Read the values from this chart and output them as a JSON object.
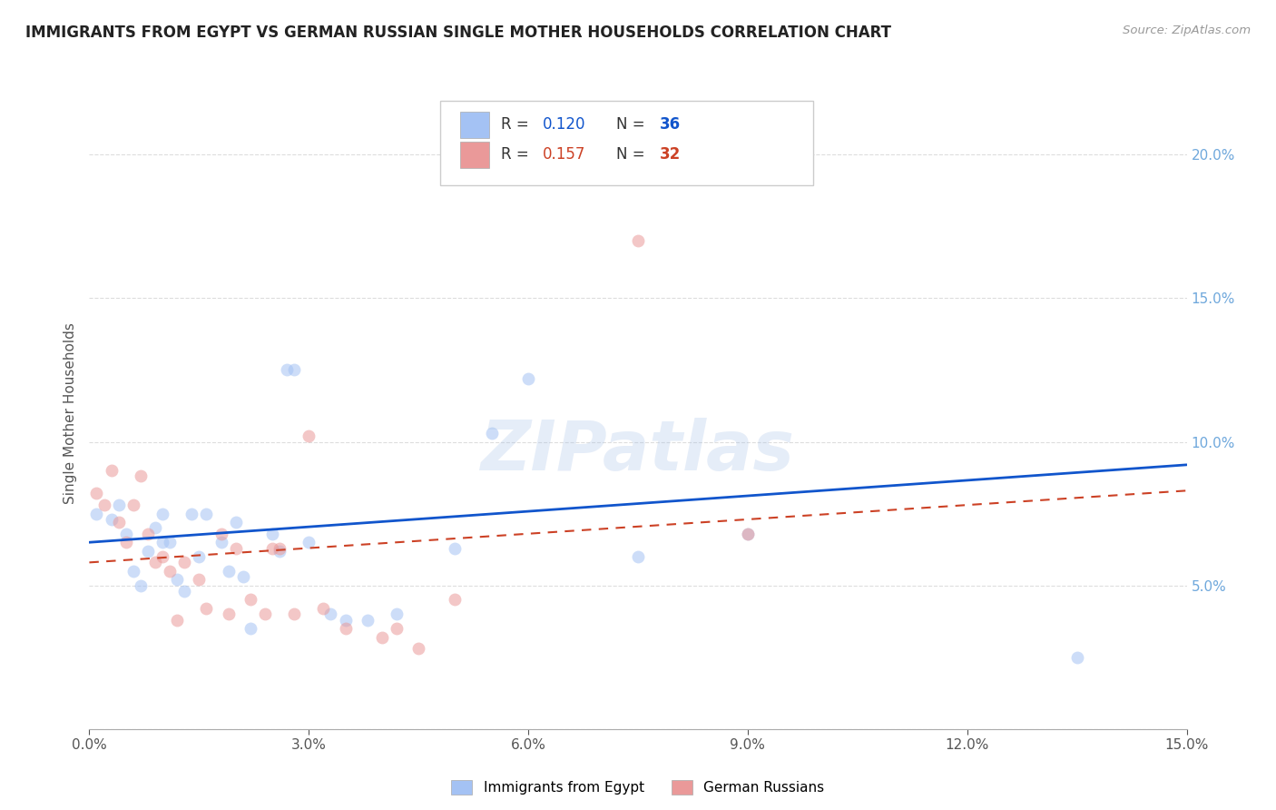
{
  "title": "IMMIGRANTS FROM EGYPT VS GERMAN RUSSIAN SINGLE MOTHER HOUSEHOLDS CORRELATION CHART",
  "source": "Source: ZipAtlas.com",
  "ylabel": "Single Mother Households",
  "xlim": [
    0.0,
    0.15
  ],
  "ylim": [
    0.0,
    0.22
  ],
  "xticks": [
    0.0,
    0.03,
    0.06,
    0.09,
    0.12,
    0.15
  ],
  "yticks_right": [
    0.05,
    0.1,
    0.15,
    0.2
  ],
  "R1": "0.120",
  "N1": "36",
  "R2": "0.157",
  "N2": "32",
  "blue_color": "#a4c2f4",
  "pink_color": "#ea9999",
  "blue_line_color": "#1155cc",
  "pink_line_color": "#cc4125",
  "right_axis_color": "#6fa8dc",
  "watermark": "ZIPatlas",
  "blue_scatter_x": [
    0.001,
    0.003,
    0.004,
    0.005,
    0.006,
    0.007,
    0.008,
    0.009,
    0.01,
    0.01,
    0.011,
    0.012,
    0.013,
    0.014,
    0.015,
    0.016,
    0.018,
    0.019,
    0.02,
    0.021,
    0.022,
    0.025,
    0.026,
    0.027,
    0.028,
    0.03,
    0.033,
    0.035,
    0.038,
    0.042,
    0.05,
    0.055,
    0.06,
    0.075,
    0.09,
    0.135
  ],
  "blue_scatter_y": [
    0.075,
    0.073,
    0.078,
    0.068,
    0.055,
    0.05,
    0.062,
    0.07,
    0.065,
    0.075,
    0.065,
    0.052,
    0.048,
    0.075,
    0.06,
    0.075,
    0.065,
    0.055,
    0.072,
    0.053,
    0.035,
    0.068,
    0.062,
    0.125,
    0.125,
    0.065,
    0.04,
    0.038,
    0.038,
    0.04,
    0.063,
    0.103,
    0.122,
    0.06,
    0.068,
    0.025
  ],
  "pink_scatter_x": [
    0.001,
    0.002,
    0.003,
    0.004,
    0.005,
    0.006,
    0.007,
    0.008,
    0.009,
    0.01,
    0.011,
    0.012,
    0.013,
    0.015,
    0.016,
    0.018,
    0.019,
    0.02,
    0.022,
    0.024,
    0.025,
    0.026,
    0.028,
    0.03,
    0.032,
    0.035,
    0.04,
    0.042,
    0.045,
    0.05,
    0.075,
    0.09
  ],
  "pink_scatter_y": [
    0.082,
    0.078,
    0.09,
    0.072,
    0.065,
    0.078,
    0.088,
    0.068,
    0.058,
    0.06,
    0.055,
    0.038,
    0.058,
    0.052,
    0.042,
    0.068,
    0.04,
    0.063,
    0.045,
    0.04,
    0.063,
    0.063,
    0.04,
    0.102,
    0.042,
    0.035,
    0.032,
    0.035,
    0.028,
    0.045,
    0.17,
    0.068
  ],
  "blue_line_x": [
    0.0,
    0.15
  ],
  "blue_line_y": [
    0.065,
    0.092
  ],
  "pink_line_x": [
    0.0,
    0.15
  ],
  "pink_line_y": [
    0.058,
    0.083
  ],
  "title_fontsize": 12,
  "axis_label_fontsize": 11,
  "tick_fontsize": 11,
  "legend_fontsize": 12,
  "scatter_size": 100,
  "scatter_alpha": 0.55,
  "background_color": "#ffffff",
  "grid_color": "#dddddd",
  "title_color": "#222222"
}
